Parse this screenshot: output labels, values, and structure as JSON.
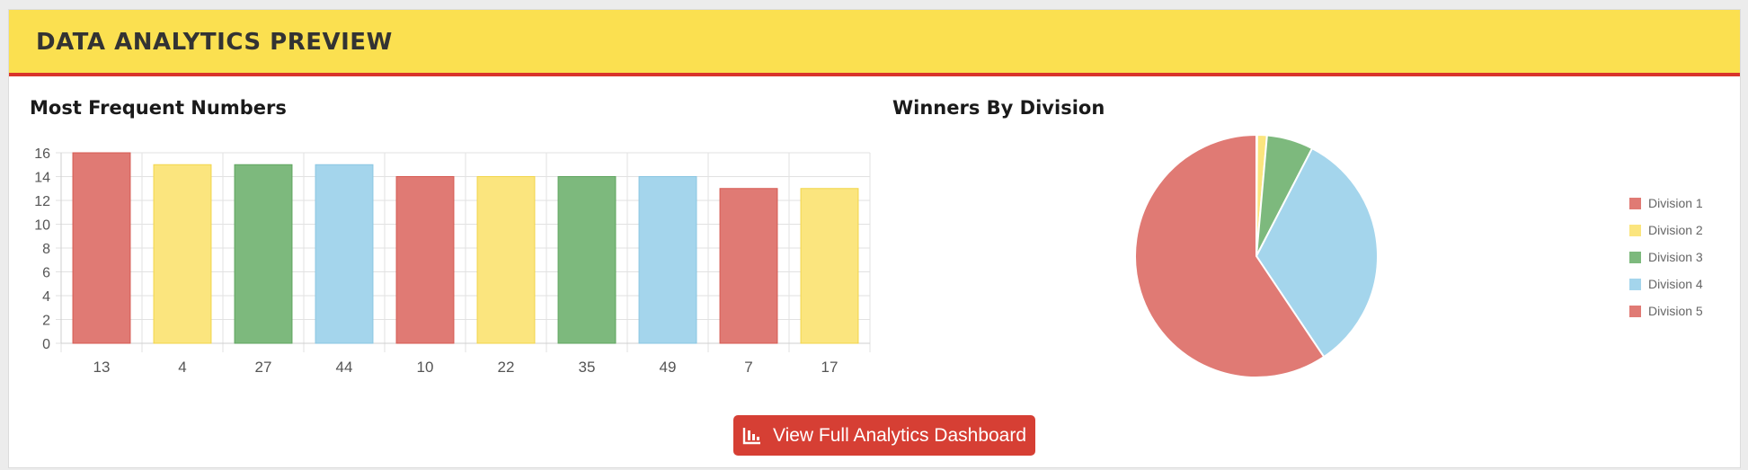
{
  "header": {
    "title": "DATA ANALYTICS PREVIEW"
  },
  "bar_section": {
    "title": "Most Frequent Numbers"
  },
  "pie_section": {
    "title": "Winners By Division"
  },
  "button": {
    "label": "View Full Analytics Dashboard",
    "icon": "bar-chart-icon",
    "color": "#d63f34"
  },
  "colors": {
    "header_bg": "#fbe050",
    "header_border": "#d9342b",
    "red": "#e07a74",
    "yellow": "#fbe57e",
    "green": "#7db97d",
    "blue": "#a4d5ec"
  },
  "chart_data": [
    {
      "type": "bar",
      "categories": [
        "13",
        "4",
        "27",
        "44",
        "10",
        "22",
        "35",
        "49",
        "7",
        "17"
      ],
      "values": [
        16,
        15,
        15,
        15,
        14,
        14,
        14,
        14,
        13,
        13
      ],
      "bar_colors": [
        "#e07a74",
        "#fbe57e",
        "#7db97d",
        "#a4d5ec",
        "#e07a74",
        "#fbe57e",
        "#7db97d",
        "#a4d5ec",
        "#e07a74",
        "#fbe57e"
      ],
      "yticks": [
        "0",
        "2",
        "4",
        "6",
        "8",
        "10",
        "12",
        "14",
        "16"
      ],
      "ylim": [
        0,
        16
      ],
      "grid": true
    },
    {
      "type": "pie",
      "labels": [
        "Division 1",
        "Division 2",
        "Division 3",
        "Division 4",
        "Division 5"
      ],
      "values": [
        0.1,
        1.3,
        6.2,
        33.0,
        59.4
      ],
      "colors": [
        "#e07a74",
        "#fbe57e",
        "#7db97d",
        "#a4d5ec",
        "#e07a74"
      ],
      "legend": "right"
    }
  ]
}
